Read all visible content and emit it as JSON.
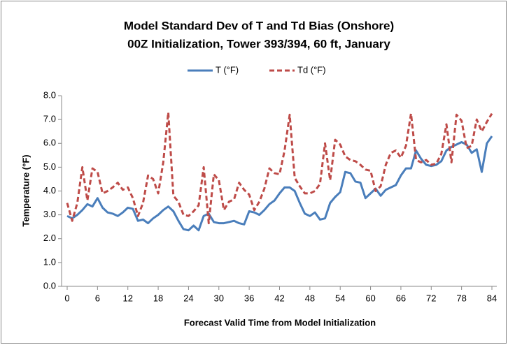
{
  "chart_data": {
    "type": "line",
    "title": "Model Standard Dev of T and Td Bias (Onshore)",
    "subtitle": "00Z Initialization, Tower 393/394, 60 ft, January",
    "x_label": "Forecast Valid Time from  Model Initialization",
    "y_label": "Temperature (°F)",
    "x": [
      0,
      1,
      2,
      3,
      4,
      5,
      6,
      7,
      8,
      9,
      10,
      11,
      12,
      13,
      14,
      15,
      16,
      17,
      18,
      19,
      20,
      21,
      22,
      23,
      24,
      25,
      26,
      27,
      28,
      29,
      30,
      31,
      32,
      33,
      34,
      35,
      36,
      37,
      38,
      39,
      40,
      41,
      42,
      43,
      44,
      45,
      46,
      47,
      48,
      49,
      50,
      51,
      52,
      53,
      54,
      55,
      56,
      57,
      58,
      59,
      60,
      61,
      62,
      63,
      64,
      65,
      66,
      67,
      68,
      69,
      70,
      71,
      72,
      73,
      74,
      75,
      76,
      77,
      78,
      79,
      80,
      81,
      82,
      83,
      84
    ],
    "series": [
      {
        "name": "T (°F)",
        "color": "#4a7ebb",
        "dash": false,
        "values": [
          2.95,
          2.85,
          3.0,
          3.2,
          3.45,
          3.35,
          3.7,
          3.3,
          3.1,
          3.05,
          2.95,
          3.1,
          3.3,
          3.25,
          2.75,
          2.8,
          2.65,
          2.85,
          3.0,
          3.2,
          3.35,
          3.15,
          2.75,
          2.4,
          2.35,
          2.55,
          2.35,
          2.95,
          3.05,
          2.7,
          2.65,
          2.65,
          2.7,
          2.75,
          2.65,
          2.6,
          3.15,
          3.1,
          3.0,
          3.2,
          3.45,
          3.6,
          3.9,
          4.15,
          4.15,
          4.0,
          3.5,
          3.05,
          2.95,
          3.1,
          2.8,
          2.85,
          3.5,
          3.75,
          3.95,
          4.8,
          4.75,
          4.4,
          4.35,
          3.7,
          3.9,
          4.1,
          3.8,
          4.05,
          4.15,
          4.25,
          4.65,
          4.95,
          4.95,
          5.7,
          5.35,
          5.1,
          5.05,
          5.1,
          5.25,
          5.7,
          5.85,
          5.95,
          6.05,
          5.95,
          5.6,
          5.75,
          4.8,
          6.0,
          6.3
        ]
      },
      {
        "name": "Td (°F)",
        "color": "#be4b48",
        "dash": true,
        "values": [
          3.5,
          2.75,
          3.5,
          5.0,
          3.6,
          4.95,
          4.8,
          3.9,
          4.0,
          4.15,
          4.35,
          4.05,
          4.15,
          3.7,
          2.95,
          3.5,
          4.65,
          4.5,
          3.9,
          5.2,
          7.3,
          3.8,
          3.55,
          3.0,
          2.95,
          3.15,
          3.4,
          5.0,
          2.65,
          4.7,
          4.45,
          3.2,
          3.55,
          3.65,
          4.35,
          4.05,
          3.85,
          3.2,
          3.55,
          4.1,
          4.95,
          4.75,
          4.7,
          5.7,
          7.2,
          4.55,
          4.2,
          3.9,
          3.9,
          4.0,
          4.3,
          6.0,
          4.45,
          6.15,
          5.95,
          5.45,
          5.3,
          5.25,
          5.1,
          4.9,
          4.85,
          4.0,
          4.2,
          5.1,
          5.6,
          5.7,
          5.4,
          5.9,
          7.25,
          5.3,
          5.2,
          5.3,
          5.1,
          5.15,
          5.55,
          6.8,
          5.2,
          7.2,
          6.95,
          5.8,
          5.9,
          7.0,
          6.5,
          6.9,
          7.25
        ]
      }
    ],
    "xlim": [
      0,
      84
    ],
    "xticks": [
      0,
      6,
      12,
      18,
      24,
      30,
      36,
      42,
      48,
      54,
      60,
      66,
      72,
      78,
      84
    ],
    "ylim": [
      0,
      8
    ],
    "yticks": [
      {
        "value": 0,
        "label": "0.0"
      },
      {
        "value": 1,
        "label": "1.0"
      },
      {
        "value": 2,
        "label": "2.0"
      },
      {
        "value": 3,
        "label": "3.0"
      },
      {
        "value": 4,
        "label": "4.0"
      },
      {
        "value": 5,
        "label": "5.0"
      },
      {
        "value": 6,
        "label": "6.0"
      },
      {
        "value": 7,
        "label": "7.0"
      },
      {
        "value": 8,
        "label": "8.0"
      }
    ],
    "legend": "top",
    "grid": false
  }
}
